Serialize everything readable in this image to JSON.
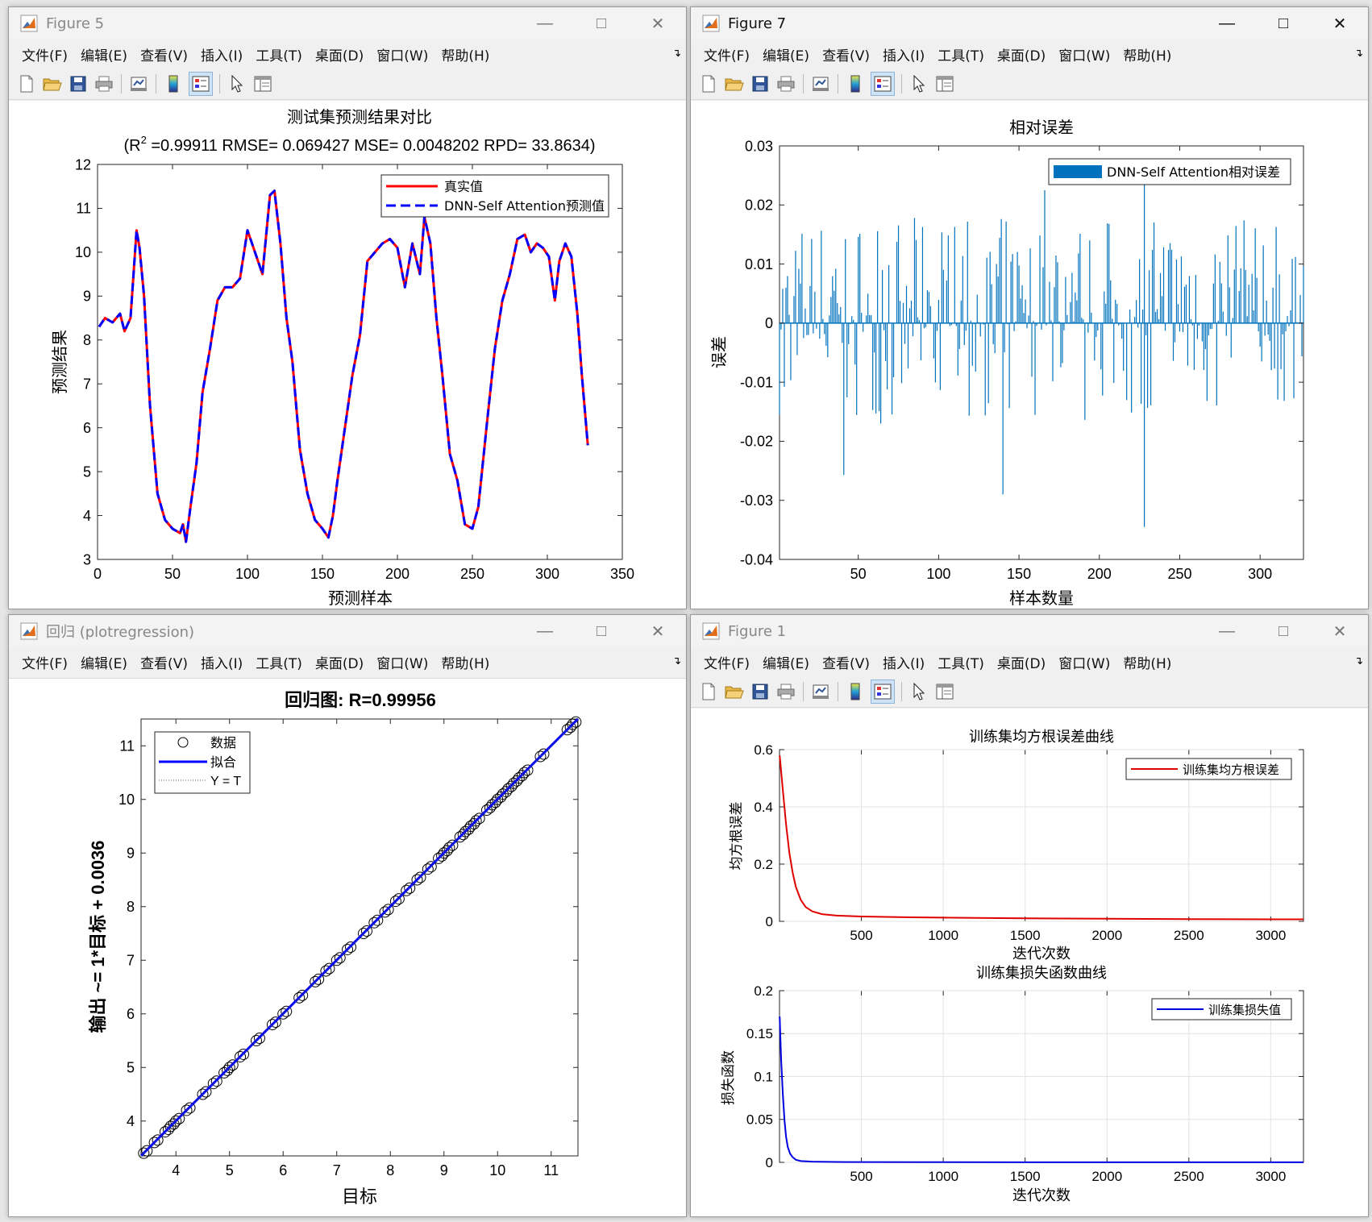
{
  "menu": [
    "文件(F)",
    "编辑(E)",
    "查看(V)",
    "插入(I)",
    "工具(T)",
    "桌面(D)",
    "窗口(W)",
    "帮助(H)"
  ],
  "windows": {
    "fig5": {
      "title": "Figure 5",
      "active": false
    },
    "fig7": {
      "title": "Figure 7",
      "active": true
    },
    "reg": {
      "title": "回归 (plotregression)",
      "active": false
    },
    "fig1": {
      "title": "Figure 1",
      "active": false
    }
  },
  "icons": [
    "new-figure-icon",
    "open-icon",
    "save-icon",
    "print-icon",
    "link-plot-icon",
    "colorbar-icon",
    "legend-icon",
    "pointer-icon",
    "property-editor-icon"
  ],
  "colors": {
    "red": "#ff0000",
    "blue": "#0000ff",
    "bar": "#0072bd",
    "reg_line": "#0000ff"
  },
  "fig5": {
    "title_line1": "测试集预测结果对比",
    "title_line2_a": "(R",
    "title_line2_sup": "2",
    "title_line2_b": " =0.99911 RMSE= 0.069427 MSE= 0.0048202 RPD= 33.8634)",
    "xlabel": "预测样本",
    "ylabel": "预测结果",
    "legend_true": "真实值",
    "legend_pred": "DNN-Self Attention预测值"
  },
  "fig7": {
    "title": "相对误差",
    "xlabel": "样本数量",
    "ylabel": "误差",
    "legend": "DNN-Self Attention相对误差"
  },
  "reg": {
    "title": "回归图: R=0.99956",
    "xlabel": "目标",
    "ylabel": "输出 ~= 1*目标 + 0.0036",
    "legend_data": "数据",
    "legend_fit": "拟合",
    "legend_ident": "Y = T"
  },
  "fig1": {
    "top_title": "训练集均方根误差曲线",
    "top_xlabel": "迭代次数",
    "top_ylabel": "均方根误差",
    "top_legend": "训练集均方根误差",
    "bot_title": "训练集损失函数曲线",
    "bot_xlabel": "迭代次数",
    "bot_ylabel": "损失函数",
    "bot_legend": "训练集损失值"
  },
  "chart_data": [
    {
      "type": "line",
      "title": "测试集预测结果对比 (R2 =0.99911 RMSE= 0.069427 MSE= 0.0048202 RPD= 33.8634)",
      "xlabel": "预测样本",
      "ylabel": "预测结果",
      "xlim": [
        0,
        350
      ],
      "ylim": [
        3,
        12
      ],
      "xticks": [
        0,
        50,
        100,
        150,
        200,
        250,
        300,
        350
      ],
      "yticks": [
        3,
        4,
        5,
        6,
        7,
        8,
        9,
        10,
        11,
        12
      ],
      "legend_position": "top-right",
      "x": [
        1,
        5,
        10,
        15,
        18,
        22,
        26,
        28,
        31,
        35,
        40,
        45,
        50,
        55,
        57,
        59,
        62,
        66,
        70,
        75,
        80,
        85,
        90,
        95,
        100,
        105,
        110,
        115,
        118,
        122,
        126,
        130,
        135,
        140,
        145,
        150,
        154,
        157,
        160,
        165,
        170,
        175,
        180,
        185,
        190,
        195,
        200,
        205,
        210,
        215,
        218,
        222,
        226,
        230,
        235,
        240,
        245,
        250,
        254,
        260,
        265,
        270,
        275,
        280,
        285,
        289,
        293,
        297,
        301,
        305,
        308,
        312,
        316,
        320,
        323,
        327
      ],
      "series": [
        {
          "name": "真实值",
          "values": [
            8.3,
            8.5,
            8.4,
            8.6,
            8.2,
            8.5,
            10.5,
            10.1,
            9.0,
            6.5,
            4.5,
            3.9,
            3.7,
            3.6,
            3.8,
            3.4,
            4.2,
            5.2,
            6.8,
            7.8,
            8.9,
            9.2,
            9.2,
            9.4,
            10.5,
            10.0,
            9.5,
            11.3,
            11.4,
            10.2,
            8.5,
            7.5,
            5.5,
            4.5,
            3.9,
            3.7,
            3.5,
            4.0,
            4.8,
            6.0,
            7.2,
            8.1,
            9.8,
            10.0,
            10.2,
            10.3,
            10.1,
            9.2,
            10.2,
            9.5,
            10.8,
            10.2,
            8.5,
            7.2,
            5.4,
            4.8,
            3.8,
            3.7,
            4.2,
            6.2,
            7.8,
            8.9,
            9.5,
            10.3,
            10.4,
            10.0,
            10.2,
            10.1,
            9.9,
            8.9,
            9.8,
            10.2,
            9.9,
            8.6,
            7.2,
            5.6
          ]
        },
        {
          "name": "DNN-Self Attention预测值",
          "values": [
            8.3,
            8.5,
            8.4,
            8.6,
            8.2,
            8.5,
            10.5,
            10.1,
            9.0,
            6.5,
            4.5,
            3.9,
            3.7,
            3.6,
            3.8,
            3.4,
            4.2,
            5.2,
            6.8,
            7.8,
            8.9,
            9.2,
            9.2,
            9.4,
            10.5,
            10.0,
            9.5,
            11.3,
            11.4,
            10.2,
            8.5,
            7.5,
            5.5,
            4.5,
            3.9,
            3.7,
            3.5,
            4.0,
            4.8,
            6.0,
            7.2,
            8.1,
            9.8,
            10.0,
            10.2,
            10.3,
            10.1,
            9.2,
            10.2,
            9.5,
            10.8,
            10.2,
            8.5,
            7.2,
            5.4,
            4.8,
            3.8,
            3.7,
            4.2,
            6.2,
            7.8,
            8.9,
            9.5,
            10.3,
            10.4,
            10.0,
            10.2,
            10.1,
            9.9,
            8.9,
            9.8,
            10.2,
            9.9,
            8.6,
            7.2,
            5.6
          ]
        }
      ]
    },
    {
      "type": "bar",
      "title": "相对误差",
      "xlabel": "样本数量",
      "ylabel": "误差",
      "xlim": [
        1,
        327
      ],
      "ylim": [
        -0.04,
        0.03
      ],
      "xticks": [
        50,
        100,
        150,
        200,
        250,
        300
      ],
      "yticks": [
        -0.04,
        -0.03,
        -0.02,
        -0.01,
        0,
        0.01,
        0.02,
        0.03
      ],
      "legend_position": "top-right",
      "series": [
        {
          "name": "DNN-Self Attention相对误差",
          "n": 327,
          "approx_range": [
            -0.0345,
            0.0237
          ],
          "notable": [
            {
              "x": 228,
              "y": -0.0345
            },
            {
              "x": 228,
              "y": 0.0237
            },
            {
              "x": 140,
              "y": -0.029
            },
            {
              "x": 41,
              "y": -0.0257
            },
            {
              "x": 166,
              "y": 0.0225
            }
          ]
        }
      ]
    },
    {
      "type": "scatter",
      "title": "回归图: R=0.99956",
      "xlabel": "目标",
      "ylabel": "输出 ~= 1*目标 + 0.0036",
      "xlim": [
        3.35,
        11.5
      ],
      "ylim": [
        3.35,
        11.5
      ],
      "xticks": [
        4,
        5,
        6,
        7,
        8,
        9,
        10,
        11
      ],
      "yticks": [
        4,
        5,
        6,
        7,
        8,
        9,
        10,
        11
      ],
      "legend_position": "top-left",
      "series": [
        {
          "name": "数据",
          "x": [
            3.4,
            3.6,
            3.8,
            3.9,
            4.0,
            4.2,
            4.5,
            4.7,
            4.9,
            5.0,
            5.2,
            5.5,
            5.8,
            6.0,
            6.3,
            6.6,
            6.8,
            7.0,
            7.2,
            7.5,
            7.7,
            7.9,
            8.1,
            8.3,
            8.5,
            8.7,
            8.9,
            9.0,
            9.1,
            9.3,
            9.4,
            9.5,
            9.6,
            9.8,
            9.9,
            10.0,
            10.1,
            10.2,
            10.3,
            10.4,
            10.5,
            10.8,
            11.3,
            11.4
          ],
          "y": [
            3.4,
            3.6,
            3.8,
            3.9,
            4.0,
            4.2,
            4.5,
            4.7,
            4.9,
            5.0,
            5.2,
            5.5,
            5.8,
            6.0,
            6.3,
            6.6,
            6.8,
            7.0,
            7.2,
            7.5,
            7.7,
            7.9,
            8.1,
            8.3,
            8.5,
            8.7,
            8.9,
            9.0,
            9.1,
            9.3,
            9.4,
            9.5,
            9.6,
            9.8,
            9.9,
            10.0,
            10.1,
            10.2,
            10.3,
            10.4,
            10.5,
            10.8,
            11.3,
            11.4
          ]
        },
        {
          "name": "拟合",
          "slope": 1,
          "intercept": 0.0036
        },
        {
          "name": "Y = T",
          "slope": 1,
          "intercept": 0
        }
      ]
    },
    {
      "type": "line",
      "title": "训练集均方根误差曲线",
      "xlabel": "迭代次数",
      "ylabel": "均方根误差",
      "xlim": [
        0,
        3200
      ],
      "ylim": [
        0,
        0.6
      ],
      "xticks": [
        500,
        1000,
        1500,
        2000,
        2500,
        3000
      ],
      "yticks": [
        0,
        0.2,
        0.4,
        0.6
      ],
      "grid": true,
      "legend_position": "top-right",
      "x": [
        1,
        20,
        40,
        60,
        80,
        100,
        130,
        160,
        200,
        260,
        350,
        500,
        800,
        1200,
        1600,
        2000,
        2500,
        3000,
        3200
      ],
      "series": [
        {
          "name": "训练集均方根误差",
          "values": [
            0.58,
            0.46,
            0.34,
            0.24,
            0.17,
            0.12,
            0.075,
            0.05,
            0.035,
            0.025,
            0.02,
            0.017,
            0.014,
            0.012,
            0.01,
            0.009,
            0.008,
            0.007,
            0.007
          ]
        }
      ]
    },
    {
      "type": "line",
      "title": "训练集损失函数曲线",
      "xlabel": "迭代次数",
      "ylabel": "损失函数",
      "xlim": [
        0,
        3200
      ],
      "ylim": [
        0,
        0.2
      ],
      "xticks": [
        500,
        1000,
        1500,
        2000,
        2500,
        3000
      ],
      "yticks": [
        0,
        0.05,
        0.1,
        0.15,
        0.2
      ],
      "grid": true,
      "legend_position": "top-right",
      "x": [
        1,
        10,
        20,
        30,
        40,
        50,
        65,
        80,
        100,
        130,
        200,
        400,
        1000,
        2000,
        3200
      ],
      "series": [
        {
          "name": "训练集损失值",
          "values": [
            0.17,
            0.12,
            0.08,
            0.05,
            0.03,
            0.018,
            0.01,
            0.006,
            0.003,
            0.0015,
            0.0008,
            0.0004,
            0.0002,
            0.0001,
            0.0001
          ]
        }
      ]
    }
  ]
}
